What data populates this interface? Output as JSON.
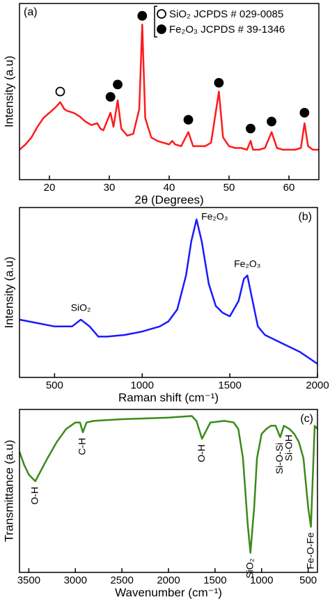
{
  "chart_data": [
    {
      "type": "line",
      "panel_label": "(a)",
      "xlabel": "2θ (Degrees)",
      "ylabel": "Intensity (a.u)",
      "xlim": [
        15,
        65
      ],
      "xticks": [
        20,
        30,
        40,
        50,
        60
      ],
      "ylim": [
        0,
        100
      ],
      "color": "#ff1a1a",
      "x": [
        15,
        16,
        17,
        18,
        19,
        20,
        21,
        21.8,
        22.5,
        23,
        24,
        25,
        26,
        27,
        28,
        28.5,
        29,
        30.2,
        30.7,
        31.4,
        32,
        33,
        34,
        35,
        35.5,
        36,
        37,
        38,
        39,
        40,
        40.5,
        41,
        42,
        43.2,
        44,
        45,
        46,
        47,
        48.3,
        49,
        50,
        51,
        52,
        53,
        53.6,
        54,
        55,
        56,
        57.1,
        58,
        59,
        60,
        61,
        62,
        62.6,
        63.2,
        64,
        65
      ],
      "values": [
        17,
        20,
        24,
        30,
        35,
        38,
        41,
        44,
        40,
        39,
        38,
        36,
        33,
        31,
        32,
        29,
        28,
        38,
        30,
        45,
        29,
        25,
        26,
        40,
        88,
        35,
        24,
        22,
        21,
        20,
        22,
        20,
        19,
        27,
        19,
        19,
        19,
        21,
        50,
        24,
        19,
        18,
        18,
        17,
        22,
        17,
        17,
        18,
        27,
        18,
        17,
        17,
        17,
        18,
        32,
        19,
        17,
        17
      ],
      "series": [
        {
          "name": "SiO₂ JCPDS # 029-0085",
          "marker": "open",
          "x": [
            21.8
          ],
          "values": [
            50
          ]
        },
        {
          "name": "Fe₂O₃ JCPDS # 39-1346",
          "marker": "filled",
          "x": [
            30.2,
            31.4,
            35.5,
            43.2,
            48.3,
            53.6,
            57.1,
            62.6
          ],
          "values": [
            47,
            54,
            93,
            34,
            55,
            29,
            33,
            38
          ]
        }
      ]
    },
    {
      "type": "line",
      "panel_label": "(b)",
      "xlabel": "Raman shift (cm⁻¹)",
      "ylabel": "Intensity (a.u)",
      "xlim": [
        300,
        2000
      ],
      "xticks": [
        500,
        1000,
        1500,
        2000
      ],
      "ylim": [
        0,
        100
      ],
      "color": "#1a1aff",
      "x": [
        300,
        400,
        500,
        600,
        650,
        700,
        750,
        800,
        900,
        1000,
        1100,
        1150,
        1200,
        1250,
        1280,
        1310,
        1340,
        1380,
        1420,
        1460,
        1500,
        1550,
        1580,
        1600,
        1620,
        1660,
        1700,
        1800,
        1900,
        2000
      ],
      "values": [
        34,
        32,
        30,
        30,
        34,
        30,
        24,
        24,
        25,
        27,
        30,
        33,
        40,
        60,
        80,
        93,
        80,
        55,
        42,
        38,
        36,
        45,
        58,
        60,
        50,
        30,
        25,
        20,
        15,
        8
      ],
      "annotations": [
        {
          "text": "SiO₂",
          "x": 650
        },
        {
          "text": "Fe₂O₃",
          "x": 1310
        },
        {
          "text": "Fe₂O₃",
          "x": 1600
        }
      ]
    },
    {
      "type": "line",
      "panel_label": "(c)",
      "xlabel": "Wavenumber (cm⁻¹)",
      "ylabel": "Transmittance (a.u)",
      "xlim": [
        3600,
        400
      ],
      "xticks": [
        3500,
        3000,
        2500,
        2000,
        1500,
        1000,
        500
      ],
      "ylim": [
        0,
        100
      ],
      "color": "#3a8a1a",
      "x": [
        3600,
        3550,
        3500,
        3430,
        3300,
        3200,
        3100,
        3000,
        2950,
        2920,
        2880,
        2800,
        2500,
        2000,
        1750,
        1700,
        1640,
        1550,
        1400,
        1300,
        1250,
        1200,
        1150,
        1120,
        1080,
        1050,
        1000,
        950,
        900,
        850,
        800,
        760,
        700,
        650,
        600,
        550,
        500,
        470,
        430,
        400
      ],
      "values": [
        74,
        66,
        60,
        56,
        70,
        80,
        88,
        92,
        92,
        86,
        92,
        93,
        94,
        95,
        96,
        93,
        82,
        92,
        93,
        92,
        88,
        70,
        30,
        12,
        40,
        70,
        85,
        88,
        90,
        90,
        83,
        90,
        88,
        85,
        80,
        70,
        40,
        28,
        90,
        88
      ],
      "annotations": [
        {
          "text": "O-H",
          "x": 3430
        },
        {
          "text": "C-H",
          "x": 2920
        },
        {
          "text": "O-H",
          "x": 1640
        },
        {
          "text": "SiO₂",
          "x": 1120
        },
        {
          "text": "Si-O-Si",
          "x": 800
        },
        {
          "text": "Si-OH",
          "x": 700
        },
        {
          "text": "Fe-O-Fe",
          "x": 470
        }
      ]
    }
  ]
}
